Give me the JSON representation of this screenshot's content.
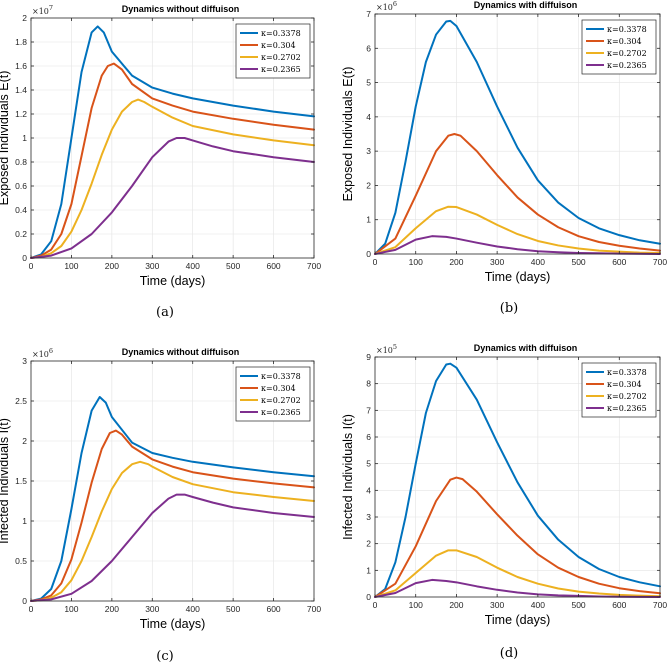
{
  "chart_data": [
    {
      "type": "line",
      "panel": "(a)",
      "title": "Dynamics without diffuison",
      "xlabel": "Time (days)",
      "ylabel": "Exposed Individuals E(t)",
      "exponent_base": "×10",
      "exponent_power": "7",
      "xlim": [
        0,
        700
      ],
      "ylim": [
        0,
        2
      ],
      "xticks": [
        0,
        100,
        200,
        300,
        400,
        500,
        600,
        700
      ],
      "xtick_labels": [
        "0",
        "100",
        "200",
        "300",
        "400",
        "500",
        "600",
        "700"
      ],
      "yticks": [
        0,
        0.2,
        0.4,
        0.6,
        0.8,
        1,
        1.2,
        1.4,
        1.6,
        1.8,
        2
      ],
      "ytick_labels": [
        "0",
        "0.2",
        "0.4",
        "0.6",
        "0.8",
        "1",
        "1.2",
        "1.4",
        "1.6",
        "1.8",
        "2"
      ],
      "grid": true,
      "legend_position": "top-right",
      "series": [
        {
          "name": "κ=0.3378",
          "color": "#0072BD",
          "x": [
            0,
            25,
            50,
            75,
            100,
            125,
            150,
            165,
            180,
            200,
            250,
            300,
            350,
            400,
            500,
            600,
            700
          ],
          "values": [
            0,
            0.03,
            0.14,
            0.45,
            1.0,
            1.55,
            1.88,
            1.93,
            1.88,
            1.72,
            1.52,
            1.42,
            1.37,
            1.33,
            1.27,
            1.22,
            1.18
          ]
        },
        {
          "name": "κ=0.304",
          "color": "#D95319",
          "x": [
            0,
            25,
            50,
            75,
            100,
            125,
            150,
            175,
            190,
            205,
            225,
            250,
            300,
            350,
            400,
            500,
            600,
            700
          ],
          "values": [
            0,
            0.02,
            0.07,
            0.2,
            0.45,
            0.85,
            1.25,
            1.52,
            1.6,
            1.62,
            1.57,
            1.45,
            1.33,
            1.27,
            1.22,
            1.16,
            1.11,
            1.07
          ]
        },
        {
          "name": "κ=0.2702",
          "color": "#EDB120",
          "x": [
            0,
            25,
            50,
            75,
            100,
            125,
            150,
            175,
            200,
            225,
            250,
            265,
            280,
            300,
            350,
            400,
            500,
            600,
            700
          ],
          "values": [
            0,
            0.01,
            0.04,
            0.1,
            0.22,
            0.4,
            0.62,
            0.86,
            1.07,
            1.22,
            1.3,
            1.32,
            1.3,
            1.26,
            1.17,
            1.1,
            1.03,
            0.98,
            0.94
          ]
        },
        {
          "name": "κ=0.2365",
          "color": "#7E2F8E",
          "x": [
            0,
            50,
            100,
            150,
            200,
            250,
            300,
            340,
            360,
            380,
            400,
            450,
            500,
            600,
            700
          ],
          "values": [
            0,
            0.02,
            0.08,
            0.2,
            0.38,
            0.6,
            0.84,
            0.97,
            1.0,
            1.0,
            0.98,
            0.93,
            0.89,
            0.84,
            0.8
          ]
        }
      ]
    },
    {
      "type": "line",
      "panel": "(b)",
      "title": "Dynamics with diffuison",
      "xlabel": "Time (days)",
      "ylabel": "Exposed Individuals E(t)",
      "exponent_base": "×10",
      "exponent_power": "6",
      "xlim": [
        0,
        700
      ],
      "ylim": [
        0,
        7
      ],
      "xticks": [
        0,
        100,
        200,
        300,
        400,
        500,
        600,
        700
      ],
      "xtick_labels": [
        "0",
        "100",
        "200",
        "300",
        "400",
        "500",
        "600",
        "700"
      ],
      "yticks": [
        0,
        1,
        2,
        3,
        4,
        5,
        6,
        7
      ],
      "ytick_labels": [
        "0",
        "1",
        "2",
        "3",
        "4",
        "5",
        "6",
        "7"
      ],
      "grid": true,
      "legend_position": "top-right",
      "series": [
        {
          "name": "κ=0.3378",
          "color": "#0072BD",
          "x": [
            0,
            25,
            50,
            75,
            100,
            125,
            150,
            175,
            185,
            200,
            250,
            300,
            350,
            400,
            450,
            500,
            550,
            600,
            650,
            700
          ],
          "values": [
            0,
            0.3,
            1.2,
            2.7,
            4.3,
            5.6,
            6.4,
            6.78,
            6.8,
            6.65,
            5.6,
            4.3,
            3.1,
            2.15,
            1.5,
            1.05,
            0.75,
            0.55,
            0.4,
            0.3
          ]
        },
        {
          "name": "κ=0.304",
          "color": "#D95319",
          "x": [
            0,
            50,
            100,
            150,
            180,
            195,
            210,
            250,
            300,
            350,
            400,
            450,
            500,
            550,
            600,
            650,
            700
          ],
          "values": [
            0,
            0.45,
            1.7,
            3.0,
            3.45,
            3.5,
            3.45,
            3.0,
            2.3,
            1.65,
            1.15,
            0.78,
            0.52,
            0.35,
            0.24,
            0.16,
            0.1
          ]
        },
        {
          "name": "κ=0.2702",
          "color": "#EDB120",
          "x": [
            0,
            50,
            100,
            150,
            180,
            200,
            250,
            300,
            350,
            400,
            450,
            500,
            550,
            600,
            650,
            700
          ],
          "values": [
            0,
            0.2,
            0.75,
            1.25,
            1.38,
            1.37,
            1.15,
            0.85,
            0.58,
            0.38,
            0.25,
            0.16,
            0.1,
            0.07,
            0.04,
            0.03
          ]
        },
        {
          "name": "κ=0.2365",
          "color": "#7E2F8E",
          "x": [
            0,
            50,
            100,
            140,
            175,
            200,
            250,
            300,
            350,
            400,
            450,
            500,
            550,
            600,
            700
          ],
          "values": [
            0,
            0.12,
            0.42,
            0.52,
            0.5,
            0.45,
            0.33,
            0.22,
            0.14,
            0.08,
            0.05,
            0.03,
            0.02,
            0.01,
            0
          ]
        }
      ]
    },
    {
      "type": "line",
      "panel": "(c)",
      "title": "Dynamics without diffuison",
      "xlabel": "Time (days)",
      "ylabel": "Infected Individuals I(t)",
      "exponent_base": "×10",
      "exponent_power": "6",
      "xlim": [
        0,
        700
      ],
      "ylim": [
        0,
        3
      ],
      "xticks": [
        0,
        100,
        200,
        300,
        400,
        500,
        600,
        700
      ],
      "xtick_labels": [
        "0",
        "100",
        "200",
        "300",
        "400",
        "500",
        "600",
        "700"
      ],
      "yticks": [
        0,
        0.5,
        1,
        1.5,
        2,
        2.5,
        3
      ],
      "ytick_labels": [
        "0",
        "0.5",
        "1",
        "1.5",
        "2",
        "2.5",
        "3"
      ],
      "grid": true,
      "legend_position": "top-right",
      "series": [
        {
          "name": "κ=0.3378",
          "color": "#0072BD",
          "x": [
            0,
            25,
            50,
            75,
            100,
            125,
            150,
            170,
            185,
            200,
            250,
            300,
            350,
            400,
            500,
            600,
            700
          ],
          "values": [
            0,
            0.03,
            0.15,
            0.5,
            1.15,
            1.85,
            2.38,
            2.55,
            2.48,
            2.3,
            1.98,
            1.85,
            1.79,
            1.74,
            1.67,
            1.61,
            1.56
          ]
        },
        {
          "name": "κ=0.304",
          "color": "#D95319",
          "x": [
            0,
            25,
            50,
            75,
            100,
            125,
            150,
            175,
            195,
            210,
            225,
            250,
            300,
            350,
            400,
            500,
            600,
            700
          ],
          "values": [
            0,
            0.02,
            0.07,
            0.22,
            0.52,
            0.98,
            1.48,
            1.9,
            2.1,
            2.13,
            2.08,
            1.93,
            1.77,
            1.68,
            1.61,
            1.53,
            1.47,
            1.42
          ]
        },
        {
          "name": "κ=0.2702",
          "color": "#EDB120",
          "x": [
            0,
            25,
            50,
            75,
            100,
            125,
            150,
            175,
            200,
            225,
            250,
            270,
            290,
            300,
            350,
            400,
            500,
            600,
            700
          ],
          "values": [
            0,
            0.01,
            0.04,
            0.11,
            0.26,
            0.5,
            0.8,
            1.12,
            1.4,
            1.6,
            1.71,
            1.74,
            1.71,
            1.68,
            1.55,
            1.46,
            1.36,
            1.3,
            1.25
          ]
        },
        {
          "name": "κ=0.2365",
          "color": "#7E2F8E",
          "x": [
            0,
            50,
            100,
            150,
            200,
            250,
            300,
            340,
            360,
            380,
            400,
            450,
            500,
            600,
            700
          ],
          "values": [
            0,
            0.02,
            0.09,
            0.25,
            0.5,
            0.8,
            1.1,
            1.28,
            1.33,
            1.33,
            1.3,
            1.23,
            1.17,
            1.1,
            1.05
          ]
        }
      ]
    },
    {
      "type": "line",
      "panel": "(d)",
      "title": "Dynamics with diffuison",
      "xlabel": "Time (days)",
      "ylabel": "Infected Individuals I(t)",
      "exponent_base": "×10",
      "exponent_power": "5",
      "xlim": [
        0,
        700
      ],
      "ylim": [
        0,
        9
      ],
      "xticks": [
        0,
        100,
        200,
        300,
        400,
        500,
        600,
        700
      ],
      "xtick_labels": [
        "0",
        "100",
        "200",
        "300",
        "400",
        "500",
        "600",
        "700"
      ],
      "yticks": [
        0,
        1,
        2,
        3,
        4,
        5,
        6,
        7,
        8,
        9
      ],
      "ytick_labels": [
        "0",
        "1",
        "2",
        "3",
        "4",
        "5",
        "6",
        "7",
        "8",
        "9"
      ],
      "grid": true,
      "legend_position": "top-right",
      "series": [
        {
          "name": "κ=0.3378",
          "color": "#0072BD",
          "x": [
            0,
            25,
            50,
            75,
            100,
            125,
            150,
            175,
            185,
            200,
            250,
            300,
            350,
            400,
            450,
            500,
            550,
            600,
            650,
            700
          ],
          "values": [
            0,
            0.3,
            1.3,
            3.0,
            5.0,
            6.9,
            8.1,
            8.72,
            8.75,
            8.6,
            7.4,
            5.8,
            4.3,
            3.05,
            2.15,
            1.5,
            1.05,
            0.75,
            0.55,
            0.4
          ]
        },
        {
          "name": "κ=0.304",
          "color": "#D95319",
          "x": [
            0,
            50,
            100,
            150,
            185,
            200,
            215,
            250,
            300,
            350,
            400,
            450,
            500,
            550,
            600,
            650,
            700
          ],
          "values": [
            0,
            0.5,
            1.9,
            3.6,
            4.4,
            4.48,
            4.42,
            3.95,
            3.1,
            2.3,
            1.6,
            1.1,
            0.75,
            0.5,
            0.33,
            0.22,
            0.14
          ]
        },
        {
          "name": "κ=0.2702",
          "color": "#EDB120",
          "x": [
            0,
            50,
            100,
            150,
            180,
            200,
            250,
            300,
            350,
            400,
            450,
            500,
            550,
            600,
            650,
            700
          ],
          "values": [
            0,
            0.25,
            0.9,
            1.55,
            1.75,
            1.75,
            1.5,
            1.1,
            0.75,
            0.5,
            0.32,
            0.2,
            0.13,
            0.08,
            0.05,
            0.03
          ]
        },
        {
          "name": "κ=0.2365",
          "color": "#7E2F8E",
          "x": [
            0,
            50,
            100,
            140,
            175,
            200,
            250,
            300,
            350,
            400,
            450,
            500,
            550,
            600,
            700
          ],
          "values": [
            0,
            0.15,
            0.52,
            0.64,
            0.6,
            0.55,
            0.4,
            0.27,
            0.17,
            0.1,
            0.06,
            0.04,
            0.02,
            0.01,
            0
          ]
        }
      ]
    }
  ]
}
